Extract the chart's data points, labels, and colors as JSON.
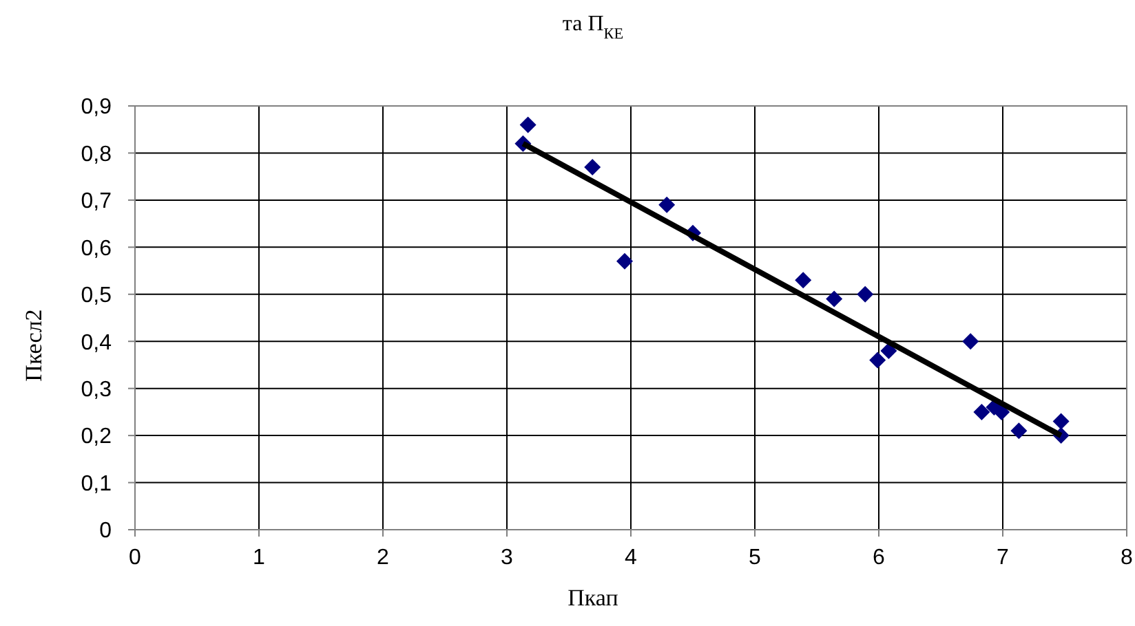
{
  "chart_data": {
    "type": "scatter",
    "title": "та П$_{КЕ}$",
    "xlabel": "Пкап",
    "ylabel": "Пкесл2",
    "xlim": [
      0,
      8
    ],
    "xticks": [
      0,
      1,
      2,
      3,
      4,
      5,
      6,
      7,
      8
    ],
    "ylim": [
      0,
      0.9
    ],
    "yticks": [
      {
        "value": 0,
        "label": "0"
      },
      {
        "value": 0.1,
        "label": "0,1"
      },
      {
        "value": 0.2,
        "label": "0,2"
      },
      {
        "value": 0.3,
        "label": "0,3"
      },
      {
        "value": 0.4,
        "label": "0,4"
      },
      {
        "value": 0.5,
        "label": "0,5"
      },
      {
        "value": 0.6,
        "label": "0,6"
      },
      {
        "value": 0.7,
        "label": "0,7"
      },
      {
        "value": 0.8,
        "label": "0,8"
      },
      {
        "value": 0.9,
        "label": "0,9"
      }
    ],
    "grid": true,
    "legend": false,
    "series": [
      {
        "type": "scatter",
        "color": "#000080",
        "marker": "diamond",
        "x": [
          3.17,
          3.13,
          3.69,
          3.95,
          4.29,
          4.5,
          5.39,
          5.64,
          5.89,
          5.99,
          6.08,
          6.74,
          6.83,
          6.93,
          6.99,
          7.13,
          7.47,
          7.47
        ],
        "values": [
          0.86,
          0.82,
          0.77,
          0.57,
          0.69,
          0.63,
          0.53,
          0.49,
          0.5,
          0.36,
          0.38,
          0.4,
          0.25,
          0.26,
          0.25,
          0.21,
          0.23,
          0.2
        ]
      },
      {
        "type": "line",
        "color": "#000000",
        "marker": "none",
        "line_style": "solid",
        "x": [
          3.13,
          7.47
        ],
        "values": [
          0.82,
          0.2
        ]
      }
    ]
  }
}
